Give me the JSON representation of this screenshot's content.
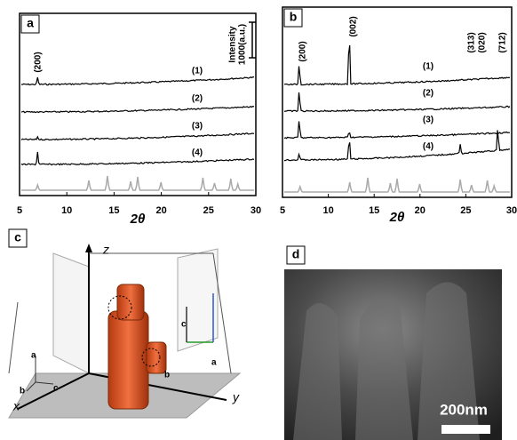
{
  "panel_a": {
    "label": "a",
    "peak_label": "(200)",
    "intensity_label": "Intensity",
    "intensity_unit": "1000(a.u.)",
    "traces": [
      "(1)",
      "(2)",
      "(3)",
      "(4)"
    ],
    "xlim": [
      5,
      30
    ],
    "xticks": [
      5,
      10,
      15,
      20,
      25,
      30
    ],
    "x_label": "2θ"
  },
  "panel_b": {
    "label": "b",
    "peak_labels": [
      "(200)",
      "(002)",
      "(313)",
      "(020)",
      "(712)"
    ],
    "traces": [
      "(1)",
      "(2)",
      "(3)",
      "(4)"
    ],
    "xlim": [
      5,
      30
    ],
    "xticks": [
      5,
      10,
      15,
      20,
      25,
      30
    ],
    "x_label": "2θ"
  },
  "panel_c": {
    "label": "c",
    "axes": [
      "z",
      "x",
      "y"
    ],
    "cell_axes_left": [
      "a",
      "b",
      "c"
    ],
    "cell_axes_right": [
      "c",
      "a",
      "b"
    ]
  },
  "panel_d": {
    "label": "d",
    "scale_bar": "200nm"
  }
}
